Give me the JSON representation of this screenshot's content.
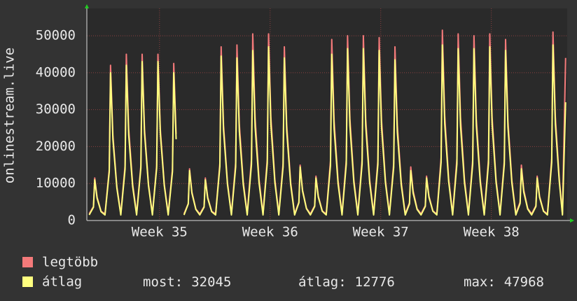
{
  "chart_data": {
    "type": "line",
    "y_axis_label": "onlinestream.live",
    "xlim": [
      0,
      30.4
    ],
    "ylim": [
      0,
      57400
    ],
    "yticks": [
      0,
      10000,
      20000,
      30000,
      40000,
      50000
    ],
    "xticks": [
      {
        "value": 4.6,
        "label": "Week 35"
      },
      {
        "value": 11.6,
        "label": "Week 36"
      },
      {
        "value": 18.6,
        "label": "Week 37"
      },
      {
        "value": 25.6,
        "label": "Week 38"
      }
    ],
    "grid": true,
    "x": [
      0.15,
      0.42,
      0.5,
      0.65,
      0.9,
      1.15,
      1.42,
      1.5,
      1.65,
      1.9,
      2.15,
      2.42,
      2.5,
      2.65,
      2.9,
      3.15,
      3.42,
      3.5,
      3.65,
      3.9,
      4.15,
      4.42,
      4.5,
      4.65,
      4.9,
      5.15,
      5.42,
      5.5,
      5.65,
      5.9,
      6.15,
      6.42,
      6.5,
      6.65,
      6.9,
      7.15,
      7.42,
      7.5,
      7.65,
      7.9,
      8.15,
      8.42,
      8.5,
      8.65,
      8.9,
      9.15,
      9.42,
      9.5,
      9.65,
      9.9,
      10.15,
      10.42,
      10.5,
      10.65,
      10.9,
      11.15,
      11.42,
      11.5,
      11.65,
      11.9,
      12.15,
      12.42,
      12.5,
      12.65,
      12.9,
      13.15,
      13.42,
      13.5,
      13.65,
      13.9,
      14.15,
      14.42,
      14.5,
      14.65,
      14.9,
      15.15,
      15.42,
      15.5,
      15.65,
      15.9,
      16.15,
      16.42,
      16.5,
      16.65,
      16.9,
      17.15,
      17.42,
      17.5,
      17.65,
      17.9,
      18.15,
      18.42,
      18.5,
      18.65,
      18.9,
      19.15,
      19.42,
      19.5,
      19.65,
      19.9,
      20.15,
      20.42,
      20.5,
      20.65,
      20.9,
      21.15,
      21.42,
      21.5,
      21.65,
      21.9,
      22.15,
      22.42,
      22.5,
      22.65,
      22.9,
      23.15,
      23.42,
      23.5,
      23.65,
      23.9,
      24.15,
      24.42,
      24.5,
      24.65,
      24.9,
      25.15,
      25.42,
      25.5,
      25.65,
      25.9,
      26.15,
      26.42,
      26.5,
      26.65,
      26.9,
      27.15,
      27.42,
      27.5,
      27.65,
      27.9,
      28.15,
      28.42,
      28.5,
      28.65,
      28.9,
      29.15,
      29.42,
      29.5,
      29.65,
      29.9,
      30.1,
      30.3
    ],
    "series": [
      {
        "name": "legtöbb",
        "color": "#f47a7a",
        "values": [
          1800,
          3800,
          11500,
          6300,
          2500,
          1800,
          13900,
          42000,
          23100,
          9200,
          1800,
          14900,
          45000,
          24800,
          9900,
          1800,
          14900,
          45000,
          24800,
          9900,
          1800,
          14900,
          45000,
          24800,
          9900,
          1800,
          14000,
          42500,
          23400,
          null,
          1800,
          4600,
          14000,
          7700,
          3100,
          1800,
          3800,
          11500,
          6300,
          2500,
          1800,
          15500,
          47000,
          25900,
          10300,
          1800,
          15700,
          47500,
          26100,
          10500,
          1800,
          16700,
          50500,
          27800,
          11100,
          1800,
          16700,
          50500,
          27800,
          11100,
          1800,
          15500,
          47000,
          25900,
          10300,
          1800,
          5000,
          15000,
          8300,
          3300,
          1800,
          4000,
          12000,
          6600,
          2600,
          1800,
          16200,
          49000,
          27000,
          10800,
          1800,
          16500,
          50000,
          27500,
          11000,
          1800,
          16500,
          50000,
          27500,
          11000,
          1800,
          16300,
          49500,
          27200,
          10900,
          1800,
          15500,
          47000,
          25900,
          10300,
          1800,
          4800,
          14500,
          8000,
          3200,
          1800,
          4000,
          12000,
          6600,
          2600,
          1800,
          17000,
          51500,
          28300,
          11300,
          1800,
          16700,
          50500,
          27800,
          11100,
          1800,
          16500,
          50000,
          27500,
          11000,
          1800,
          16700,
          50500,
          27800,
          11100,
          1800,
          16200,
          49000,
          27000,
          10800,
          1800,
          5000,
          15000,
          8300,
          3300,
          1800,
          4000,
          12000,
          6600,
          2600,
          1800,
          16800,
          51000,
          28100,
          11200,
          1800,
          44000
        ]
      },
      {
        "name": "átlag",
        "color": "#ffff7f",
        "values": [
          1500,
          3600,
          11000,
          6000,
          2400,
          1500,
          13200,
          40000,
          22000,
          8800,
          1500,
          13900,
          42000,
          23100,
          9200,
          1500,
          14200,
          43000,
          23700,
          9500,
          1500,
          14200,
          43000,
          23700,
          9500,
          1500,
          13200,
          40000,
          22000,
          null,
          1500,
          4500,
          13500,
          7400,
          3000,
          1500,
          3600,
          11000,
          6000,
          2400,
          1500,
          14700,
          44500,
          24500,
          9800,
          1500,
          14500,
          44000,
          24200,
          9700,
          1500,
          15200,
          46000,
          25300,
          10100,
          1500,
          15500,
          47000,
          25900,
          10300,
          1500,
          14500,
          44000,
          24200,
          9700,
          1500,
          4800,
          14500,
          8000,
          3200,
          1500,
          3800,
          11500,
          6300,
          2500,
          1500,
          14900,
          45000,
          24800,
          9900,
          1500,
          15300,
          46500,
          25600,
          10200,
          1500,
          15300,
          46500,
          25600,
          10200,
          1500,
          15200,
          46000,
          25300,
          10100,
          1500,
          14400,
          43500,
          23900,
          9600,
          1500,
          4500,
          13500,
          7400,
          3000,
          1500,
          3800,
          11500,
          6300,
          2500,
          1500,
          15700,
          47500,
          26100,
          10500,
          1500,
          15300,
          46500,
          25600,
          10200,
          1500,
          15300,
          46500,
          25600,
          10200,
          1500,
          15500,
          47000,
          25900,
          10300,
          1500,
          15200,
          46000,
          25300,
          10100,
          1500,
          4600,
          14000,
          7700,
          3100,
          1500,
          3800,
          11500,
          6300,
          2500,
          1500,
          15700,
          47500,
          26100,
          10500,
          1500,
          32000
        ]
      }
    ],
    "stats": [
      {
        "label": "most:",
        "value": 32045
      },
      {
        "label": "átlag:",
        "value": 12776
      },
      {
        "label": "max:",
        "value": 47968
      }
    ]
  }
}
